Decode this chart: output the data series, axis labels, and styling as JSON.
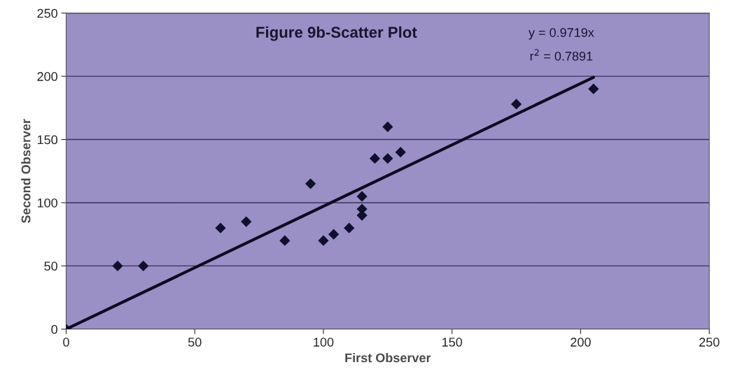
{
  "chart_data": {
    "type": "scatter",
    "title": "Figure 9b-Scatter Plot",
    "xlabel": "First Observer",
    "ylabel": "Second Observer",
    "annotations": [
      "y = 0.9719x",
      "r$^{2}$ = 0.7891"
    ],
    "series": [
      {
        "color": "#10102e",
        "marker": "diamond",
        "x": [
          0,
          20,
          30,
          60,
          70,
          85,
          95,
          100,
          104,
          110,
          115,
          115,
          115,
          120,
          125,
          125,
          130,
          175,
          205
        ],
        "values": [
          0,
          50,
          50,
          80,
          85,
          70,
          115,
          70,
          75,
          80,
          90,
          95,
          105,
          135,
          135,
          160,
          140,
          178,
          190
        ]
      },
      {
        "type": "line",
        "color": "#0e0a20",
        "marker": "none",
        "line_style": "solid",
        "x": [
          0,
          205
        ],
        "values": [
          0,
          199.2
        ]
      }
    ],
    "xlim": [
      0,
      250
    ],
    "ylim": [
      0,
      250
    ],
    "xticks": [
      0,
      50,
      100,
      150,
      200,
      250
    ],
    "yticks": [
      0,
      50,
      100,
      150,
      200,
      250
    ],
    "grid": "y",
    "legend": false
  }
}
